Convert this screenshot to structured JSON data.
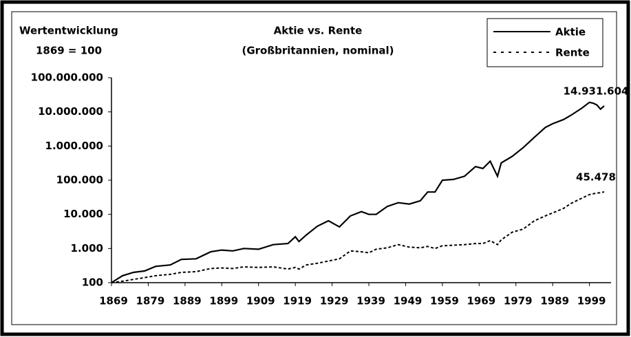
{
  "chart_data": {
    "type": "line",
    "title": "Aktie vs. Rente",
    "subtitle": "(Großbritannien, nominal)",
    "y_label": [
      "Wertentwicklung",
      "1869 = 100"
    ],
    "log_scale_y": true,
    "legend_position": "top-right",
    "x": [
      1869,
      1872,
      1875,
      1878,
      1881,
      1885,
      1888,
      1892,
      1896,
      1899,
      1902,
      1905,
      1909,
      1913,
      1917,
      1919,
      1920,
      1922,
      1925,
      1928,
      1931,
      1934,
      1937,
      1939,
      1941,
      1944,
      1947,
      1950,
      1953,
      1955,
      1957,
      1959,
      1962,
      1965,
      1968,
      1970,
      1972,
      1974,
      1975,
      1978,
      1981,
      1984,
      1987,
      1989,
      1992,
      1994,
      1997,
      1999,
      2000,
      2001,
      2002,
      2003
    ],
    "series": [
      {
        "name": "Aktie",
        "color": "#000000",
        "dash": false,
        "values": [
          100,
          160,
          200,
          220,
          300,
          330,
          480,
          500,
          800,
          900,
          850,
          1000,
          950,
          1300,
          1400,
          2200,
          1600,
          2500,
          4500,
          6500,
          4300,
          9000,
          12000,
          10000,
          10000,
          17000,
          22000,
          20000,
          25000,
          45000,
          45000,
          100000,
          105000,
          130000,
          250000,
          220000,
          360000,
          130000,
          320000,
          500000,
          900000,
          1800000,
          3500000,
          4500000,
          6000000,
          8000000,
          13000000,
          19000000,
          18000000,
          16000000,
          12000000,
          14931604
        ],
        "value_labels": [
          null,
          null,
          null,
          null,
          null,
          null,
          null,
          null,
          null,
          null,
          null,
          null,
          null,
          null,
          null,
          null,
          null,
          null,
          null,
          null,
          null,
          null,
          null,
          null,
          null,
          null,
          null,
          null,
          null,
          null,
          null,
          null,
          null,
          null,
          null,
          null,
          null,
          null,
          null,
          null,
          null,
          null,
          null,
          null,
          null,
          null,
          null,
          null,
          null,
          null,
          null,
          "14.931.604"
        ]
      },
      {
        "name": "Rente",
        "color": "#000000",
        "dash": true,
        "values": [
          100,
          110,
          125,
          140,
          160,
          175,
          200,
          210,
          260,
          270,
          260,
          290,
          280,
          290,
          250,
          280,
          250,
          330,
          370,
          430,
          500,
          850,
          800,
          750,
          950,
          1050,
          1300,
          1100,
          1050,
          1150,
          1000,
          1200,
          1250,
          1300,
          1400,
          1400,
          1700,
          1300,
          1800,
          3000,
          3700,
          6500,
          9000,
          11000,
          15000,
          21000,
          30000,
          38000,
          40000,
          42000,
          43000,
          45478
        ],
        "value_labels": [
          null,
          null,
          null,
          null,
          null,
          null,
          null,
          null,
          null,
          null,
          null,
          null,
          null,
          null,
          null,
          null,
          null,
          null,
          null,
          null,
          null,
          null,
          null,
          null,
          null,
          null,
          null,
          null,
          null,
          null,
          null,
          null,
          null,
          null,
          null,
          null,
          null,
          null,
          null,
          null,
          null,
          null,
          null,
          null,
          null,
          null,
          null,
          null,
          null,
          null,
          null,
          "45.478"
        ]
      }
    ],
    "xlim": [
      1869,
      2003
    ],
    "xticks": [
      1869,
      1879,
      1889,
      1899,
      1909,
      1919,
      1929,
      1939,
      1949,
      1959,
      1969,
      1979,
      1989,
      1999
    ],
    "ylim": [
      100,
      100000000
    ],
    "yticks": [
      100,
      {
        "value": 1000,
        "label": "1.000"
      },
      {
        "value": 10000,
        "label": "10.000"
      },
      {
        "value": 100000,
        "label": "100.000"
      },
      {
        "value": 1000000,
        "label": "1.000.000"
      },
      {
        "value": 10000000,
        "label": "10.000.000"
      },
      {
        "value": 100000000,
        "label": "100.000.000"
      }
    ]
  }
}
